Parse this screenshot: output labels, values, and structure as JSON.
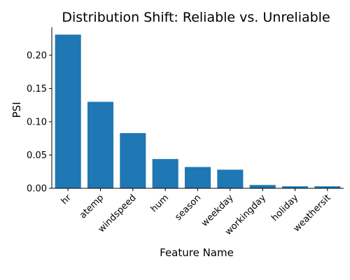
{
  "chart_data": {
    "type": "bar",
    "title": "Distribution Shift: Reliable vs. Unreliable",
    "xlabel": "Feature Name",
    "ylabel": "PSI",
    "categories": [
      "hr",
      "atemp",
      "windspeed",
      "hum",
      "season",
      "weekday",
      "workingday",
      "holiday",
      "weathersit"
    ],
    "values": [
      0.231,
      0.13,
      0.083,
      0.044,
      0.032,
      0.028,
      0.005,
      0.003,
      0.003
    ],
    "ylim": [
      0,
      0.242
    ],
    "yticks": [
      0.0,
      0.05,
      0.1,
      0.15,
      0.2
    ],
    "ytick_labels": [
      "0.00",
      "0.05",
      "0.10",
      "0.15",
      "0.20"
    ],
    "bar_color": "#1f77b4",
    "grid": false,
    "legend": "none"
  }
}
